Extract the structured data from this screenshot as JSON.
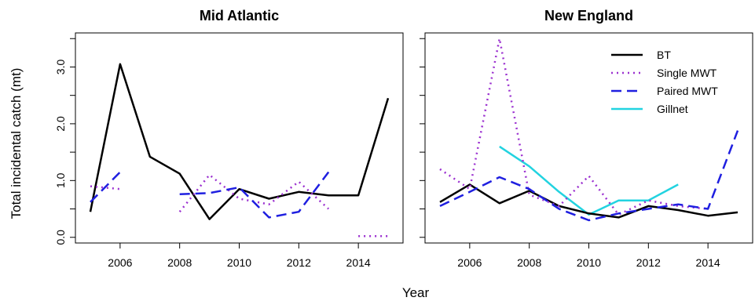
{
  "chart_data": {
    "type": "line",
    "xlabel": "Year",
    "ylabel": "Total incidental catch (mt)",
    "x_ticks": [
      2006,
      2008,
      2010,
      2012,
      2014
    ],
    "y_ticks": [
      "0.0",
      "1.0",
      "2.0",
      "3.0"
    ],
    "xlim": [
      2004.5,
      2015.5
    ],
    "ylim": [
      -0.1,
      3.6
    ],
    "legend": {
      "placement": "top-right",
      "panel": "New England"
    },
    "series_styles": [
      {
        "name": "BT",
        "color": "#000000",
        "dash": "solid"
      },
      {
        "name": "Single MWT",
        "color": "#9b30d0",
        "dash": "dotted"
      },
      {
        "name": "Paired MWT",
        "color": "#1f1fe0",
        "dash": "dashed"
      },
      {
        "name": "Gillnet",
        "color": "#22d3e0",
        "dash": "solid"
      }
    ],
    "panels": [
      {
        "title": "Mid Atlantic",
        "series": [
          {
            "name": "BT",
            "points": [
              [
                2005,
                0.45
              ],
              [
                2006,
                3.05
              ],
              [
                2007,
                1.42
              ],
              [
                2008,
                1.12
              ],
              [
                2009,
                0.32
              ],
              [
                2010,
                0.85
              ],
              [
                2011,
                0.68
              ],
              [
                2012,
                0.8
              ],
              [
                2013,
                0.74
              ],
              [
                2014,
                0.74
              ],
              [
                2015,
                2.45
              ]
            ]
          },
          {
            "name": "Single MWT",
            "segments": [
              [
                [
                  2005,
                  0.9
                ],
                [
                  2006,
                  0.85
                ]
              ],
              [
                [
                  2008,
                  0.45
                ],
                [
                  2009,
                  1.1
                ],
                [
                  2010,
                  0.68
                ],
                [
                  2011,
                  0.58
                ],
                [
                  2012,
                  0.98
                ],
                [
                  2013,
                  0.5
                ]
              ],
              [
                [
                  2014,
                  0.02
                ],
                [
                  2015,
                  0.02
                ]
              ]
            ]
          },
          {
            "name": "Paired MWT",
            "segments": [
              [
                [
                  2005,
                  0.62
                ],
                [
                  2006,
                  1.15
                ]
              ],
              [
                [
                  2008,
                  0.76
                ],
                [
                  2009,
                  0.78
                ],
                [
                  2010,
                  0.88
                ],
                [
                  2011,
                  0.35
                ],
                [
                  2012,
                  0.45
                ],
                [
                  2013,
                  1.15
                ]
              ]
            ]
          }
        ]
      },
      {
        "title": "New England",
        "series": [
          {
            "name": "BT",
            "points": [
              [
                2005,
                0.62
              ],
              [
                2006,
                0.93
              ],
              [
                2007,
                0.6
              ],
              [
                2008,
                0.82
              ],
              [
                2009,
                0.55
              ],
              [
                2010,
                0.42
              ],
              [
                2011,
                0.35
              ],
              [
                2012,
                0.55
              ],
              [
                2013,
                0.48
              ],
              [
                2014,
                0.38
              ],
              [
                2015,
                0.44
              ]
            ]
          },
          {
            "name": "Single MWT",
            "points": [
              [
                2005,
                1.2
              ],
              [
                2006,
                0.85
              ],
              [
                2007,
                3.5
              ],
              [
                2008,
                0.75
              ],
              [
                2009,
                0.55
              ],
              [
                2010,
                1.08
              ],
              [
                2011,
                0.4
              ],
              [
                2012,
                0.65
              ],
              [
                2013,
                0.55
              ],
              [
                2014,
                0.5
              ]
            ]
          },
          {
            "name": "Paired MWT",
            "points": [
              [
                2005,
                0.55
              ],
              [
                2006,
                0.8
              ],
              [
                2007,
                1.06
              ],
              [
                2008,
                0.85
              ],
              [
                2009,
                0.5
              ],
              [
                2010,
                0.3
              ],
              [
                2011,
                0.42
              ],
              [
                2012,
                0.5
              ],
              [
                2013,
                0.58
              ],
              [
                2014,
                0.5
              ],
              [
                2015,
                1.88
              ]
            ]
          },
          {
            "name": "Gillnet",
            "points": [
              [
                2007,
                1.6
              ],
              [
                2008,
                1.25
              ],
              [
                2009,
                0.8
              ],
              [
                2010,
                0.4
              ],
              [
                2011,
                0.65
              ],
              [
                2012,
                0.65
              ],
              [
                2013,
                0.93
              ]
            ]
          }
        ]
      }
    ]
  }
}
